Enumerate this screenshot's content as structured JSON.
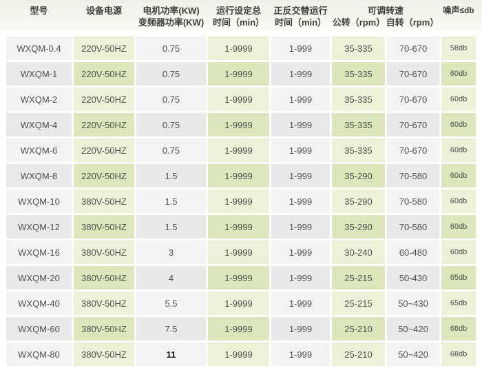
{
  "table": {
    "headers": {
      "model": "型号",
      "power_supply": "设备电源",
      "motor_power_line1": "电机功率(KW)",
      "motor_power_line2": "变频器功率(KW)",
      "run_time_line1": "运行设定总",
      "run_time_line2": "时间（min）",
      "alt_time_line1": "正反交替运行",
      "alt_time_line2": "时间（min）",
      "speed_group": "可调转速",
      "revolution": "公转（rpm）",
      "rotation": "自转（rpm）",
      "noise": "噪声≤db"
    },
    "rows": [
      [
        "WXQM-0.4",
        "220V-50HZ",
        "0.75",
        "1-9999",
        "1-999",
        "35-335",
        "70-670",
        "58db"
      ],
      [
        "WXQM-1",
        "220V-50HZ",
        "0.75",
        "1-9999",
        "1-999",
        "35-335",
        "70-670",
        "60db"
      ],
      [
        "WXQM-2",
        "220V-50HZ",
        "0.75",
        "1-9999",
        "1-999",
        "35-335",
        "70-670",
        "60db"
      ],
      [
        "WXQM-4",
        "220V-50HZ",
        "0.75",
        "1-9999",
        "1-999",
        "35-335",
        "70-670",
        "60db"
      ],
      [
        "WXQM-6",
        "220V-50HZ",
        "0.75",
        "1-9999",
        "1-999",
        "35-335",
        "70-670",
        "60db"
      ],
      [
        "WXQM-8",
        "220V-50HZ",
        "1.5",
        "1-9999",
        "1-999",
        "35-290",
        "70-580",
        "60db"
      ],
      [
        "WXQM-10",
        "380V-50HZ",
        "1.5",
        "1-9999",
        "1-999",
        "35-290",
        "70-580",
        "60db"
      ],
      [
        "WXQM-12",
        "380V-50HZ",
        "1.5",
        "1-9999",
        "1-999",
        "35-290",
        "70-580",
        "60db"
      ],
      [
        "WXQM-16",
        "380V-50HZ",
        "3",
        "1-9999",
        "1-999",
        "30-240",
        "60-480",
        "60db"
      ],
      [
        "WXQM-20",
        "380V-50HZ",
        "4",
        "1-9999",
        "1-999",
        "25-215",
        "50-430",
        "65db"
      ],
      [
        "WXQM-40",
        "380V-50HZ",
        "5.5",
        "1-9999",
        "1-999",
        "25-215",
        "50~430",
        "65db"
      ],
      [
        "WXQM-60",
        "380V-50HZ",
        "7.5",
        "1-9999",
        "1-999",
        "25-210",
        "50~420",
        "68db"
      ],
      [
        "WXQM-80",
        "380V-50HZ",
        "11",
        "1-9999",
        "1-999",
        "25-210",
        "50~420",
        "68db"
      ]
    ],
    "emphasized_cell": {
      "row": 12,
      "col": 2
    }
  },
  "colors": {
    "page_bg": "#ffffff",
    "header_bg_top": "#eef0e7",
    "header_bg_bottom": "#fafaf7",
    "header_text": "#3f3f3f",
    "cell_text": "#4f4f4f",
    "emphasis_text": "#111111",
    "cell_gray_light": "#f3f3f3",
    "cell_gray_dark": "#e9e9e9",
    "cell_green_light": "#ecf1d7",
    "cell_green_dark": "#dce6ba"
  }
}
